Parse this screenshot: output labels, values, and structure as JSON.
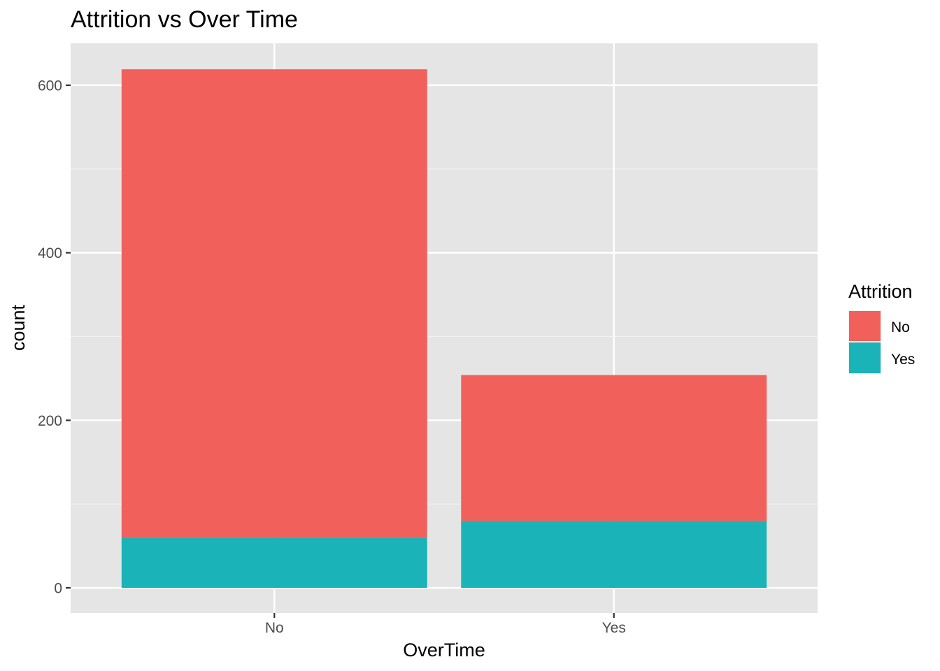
{
  "chart_data": {
    "type": "bar",
    "stacked": true,
    "title": "Attrition vs Over Time",
    "xlabel": "OverTime",
    "ylabel": "count",
    "categories": [
      "No",
      "Yes"
    ],
    "series": [
      {
        "name": "No",
        "color": "#F8766D",
        "values": [
          559,
          174
        ]
      },
      {
        "name": "Yes",
        "color": "#00BFC4",
        "values": [
          60,
          80
        ]
      }
    ],
    "stack_order": [
      "Yes",
      "No"
    ],
    "ylim": [
      -30,
      650
    ],
    "yticks": [
      0,
      200,
      400,
      600
    ],
    "grid": true,
    "legend": {
      "title": "Attrition",
      "position": "right"
    },
    "panel_color": "#EBEBEB",
    "bar_colors_rendered": {
      "No": "#F2605C",
      "Yes": "#1AB3B8"
    }
  }
}
